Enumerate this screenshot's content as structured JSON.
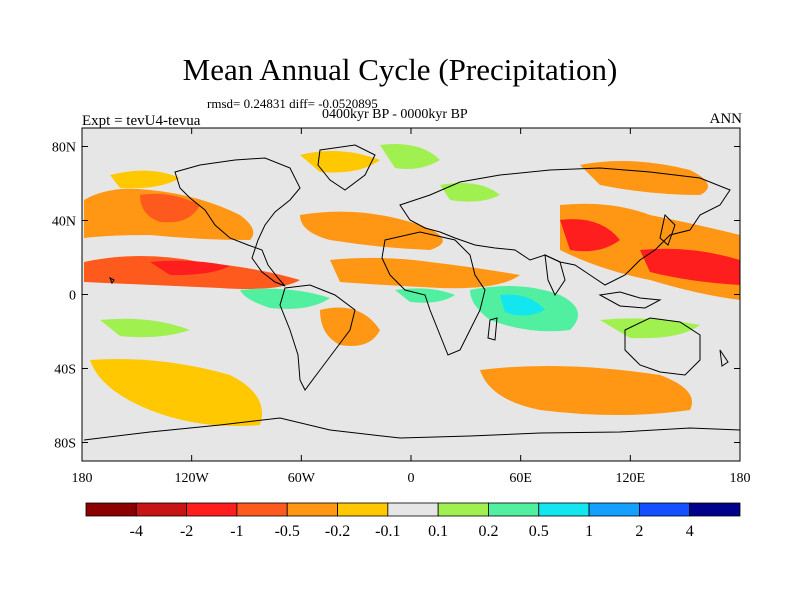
{
  "title": "Mean Annual Cycle (Precipitation)",
  "stats_line": "rmsd= 0.24831 diff= -0.0520895",
  "period": "0400kyr BP - 0000kyr BP",
  "experiment": "Expt = tevU4-tevua",
  "season": "ANN",
  "map": {
    "lon_range": [
      -180,
      180
    ],
    "lat_range": [
      -90,
      90
    ],
    "lat_ticks": [
      {
        "label": "80N",
        "lat": 80
      },
      {
        "label": "40N",
        "lat": 40
      },
      {
        "label": "0",
        "lat": 0
      },
      {
        "label": "40S",
        "lat": -40
      },
      {
        "label": "80S",
        "lat": -80
      }
    ],
    "lon_ticks": [
      {
        "label": "180",
        "lon": -180
      },
      {
        "label": "120W",
        "lon": -120
      },
      {
        "label": "60W",
        "lon": -60
      },
      {
        "label": "0",
        "lon": 0
      },
      {
        "label": "60E",
        "lon": 60
      },
      {
        "label": "120E",
        "lon": 120
      },
      {
        "label": "180",
        "lon": 180
      }
    ],
    "background_color": "#e6e6e6",
    "coastline_color": "#000000"
  },
  "colorbar": {
    "colors": [
      "#8b0000",
      "#c81414",
      "#ff1e1e",
      "#ff5a1e",
      "#ff9614",
      "#ffc800",
      "#e6e6e6",
      "#a0f050",
      "#50f0a0",
      "#14e6f0",
      "#14a0ff",
      "#1450ff",
      "#00008b"
    ],
    "labels": [
      "-4",
      "-2",
      "-1",
      "-0.5",
      "-0.2",
      "-0.1",
      "0.1",
      "0.2",
      "0.5",
      "1",
      "2",
      "4"
    ]
  }
}
